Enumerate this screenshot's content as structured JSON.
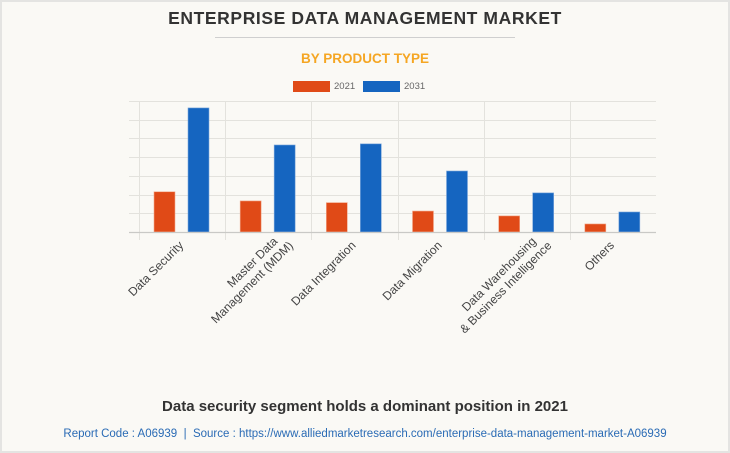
{
  "header": {
    "title": "ENTERPRISE DATA MANAGEMENT MARKET",
    "subtitle": "BY PRODUCT TYPE"
  },
  "legend": [
    {
      "label": "2021",
      "color": "#e04a17"
    },
    {
      "label": "2031",
      "color": "#1565c0"
    }
  ],
  "footer": {
    "note": "Data security segment holds a dominant position in 2021",
    "source": "Report Code : A06939  |  Source : https://www.alliedmarketresearch.com/enterprise-data-management-market-A06939"
  },
  "chart_data": {
    "type": "bar",
    "title": "ENTERPRISE DATA MANAGEMENT MARKET",
    "subtitle": "BY PRODUCT TYPE",
    "xlabel": "",
    "ylabel": "",
    "y_units": "relative (gridline units; no y-axis tick labels shown)",
    "ylim": [
      0,
      7
    ],
    "grid": true,
    "legend_position": "top-center",
    "categories": [
      [
        "Data Security"
      ],
      [
        "Master Data",
        "Management (MDM)"
      ],
      [
        "Data Integration"
      ],
      [
        "Data Migration"
      ],
      [
        "Data Warehousing",
        "& Business Intelligence"
      ],
      [
        "Others"
      ]
    ],
    "series": [
      {
        "name": "2021",
        "color": "#e04a17",
        "values": [
          2.15,
          1.66,
          1.57,
          1.12,
          0.86,
          0.43
        ]
      },
      {
        "name": "2031",
        "color": "#1565c0",
        "values": [
          6.63,
          4.65,
          4.71,
          3.26,
          2.09,
          1.07
        ]
      }
    ]
  }
}
